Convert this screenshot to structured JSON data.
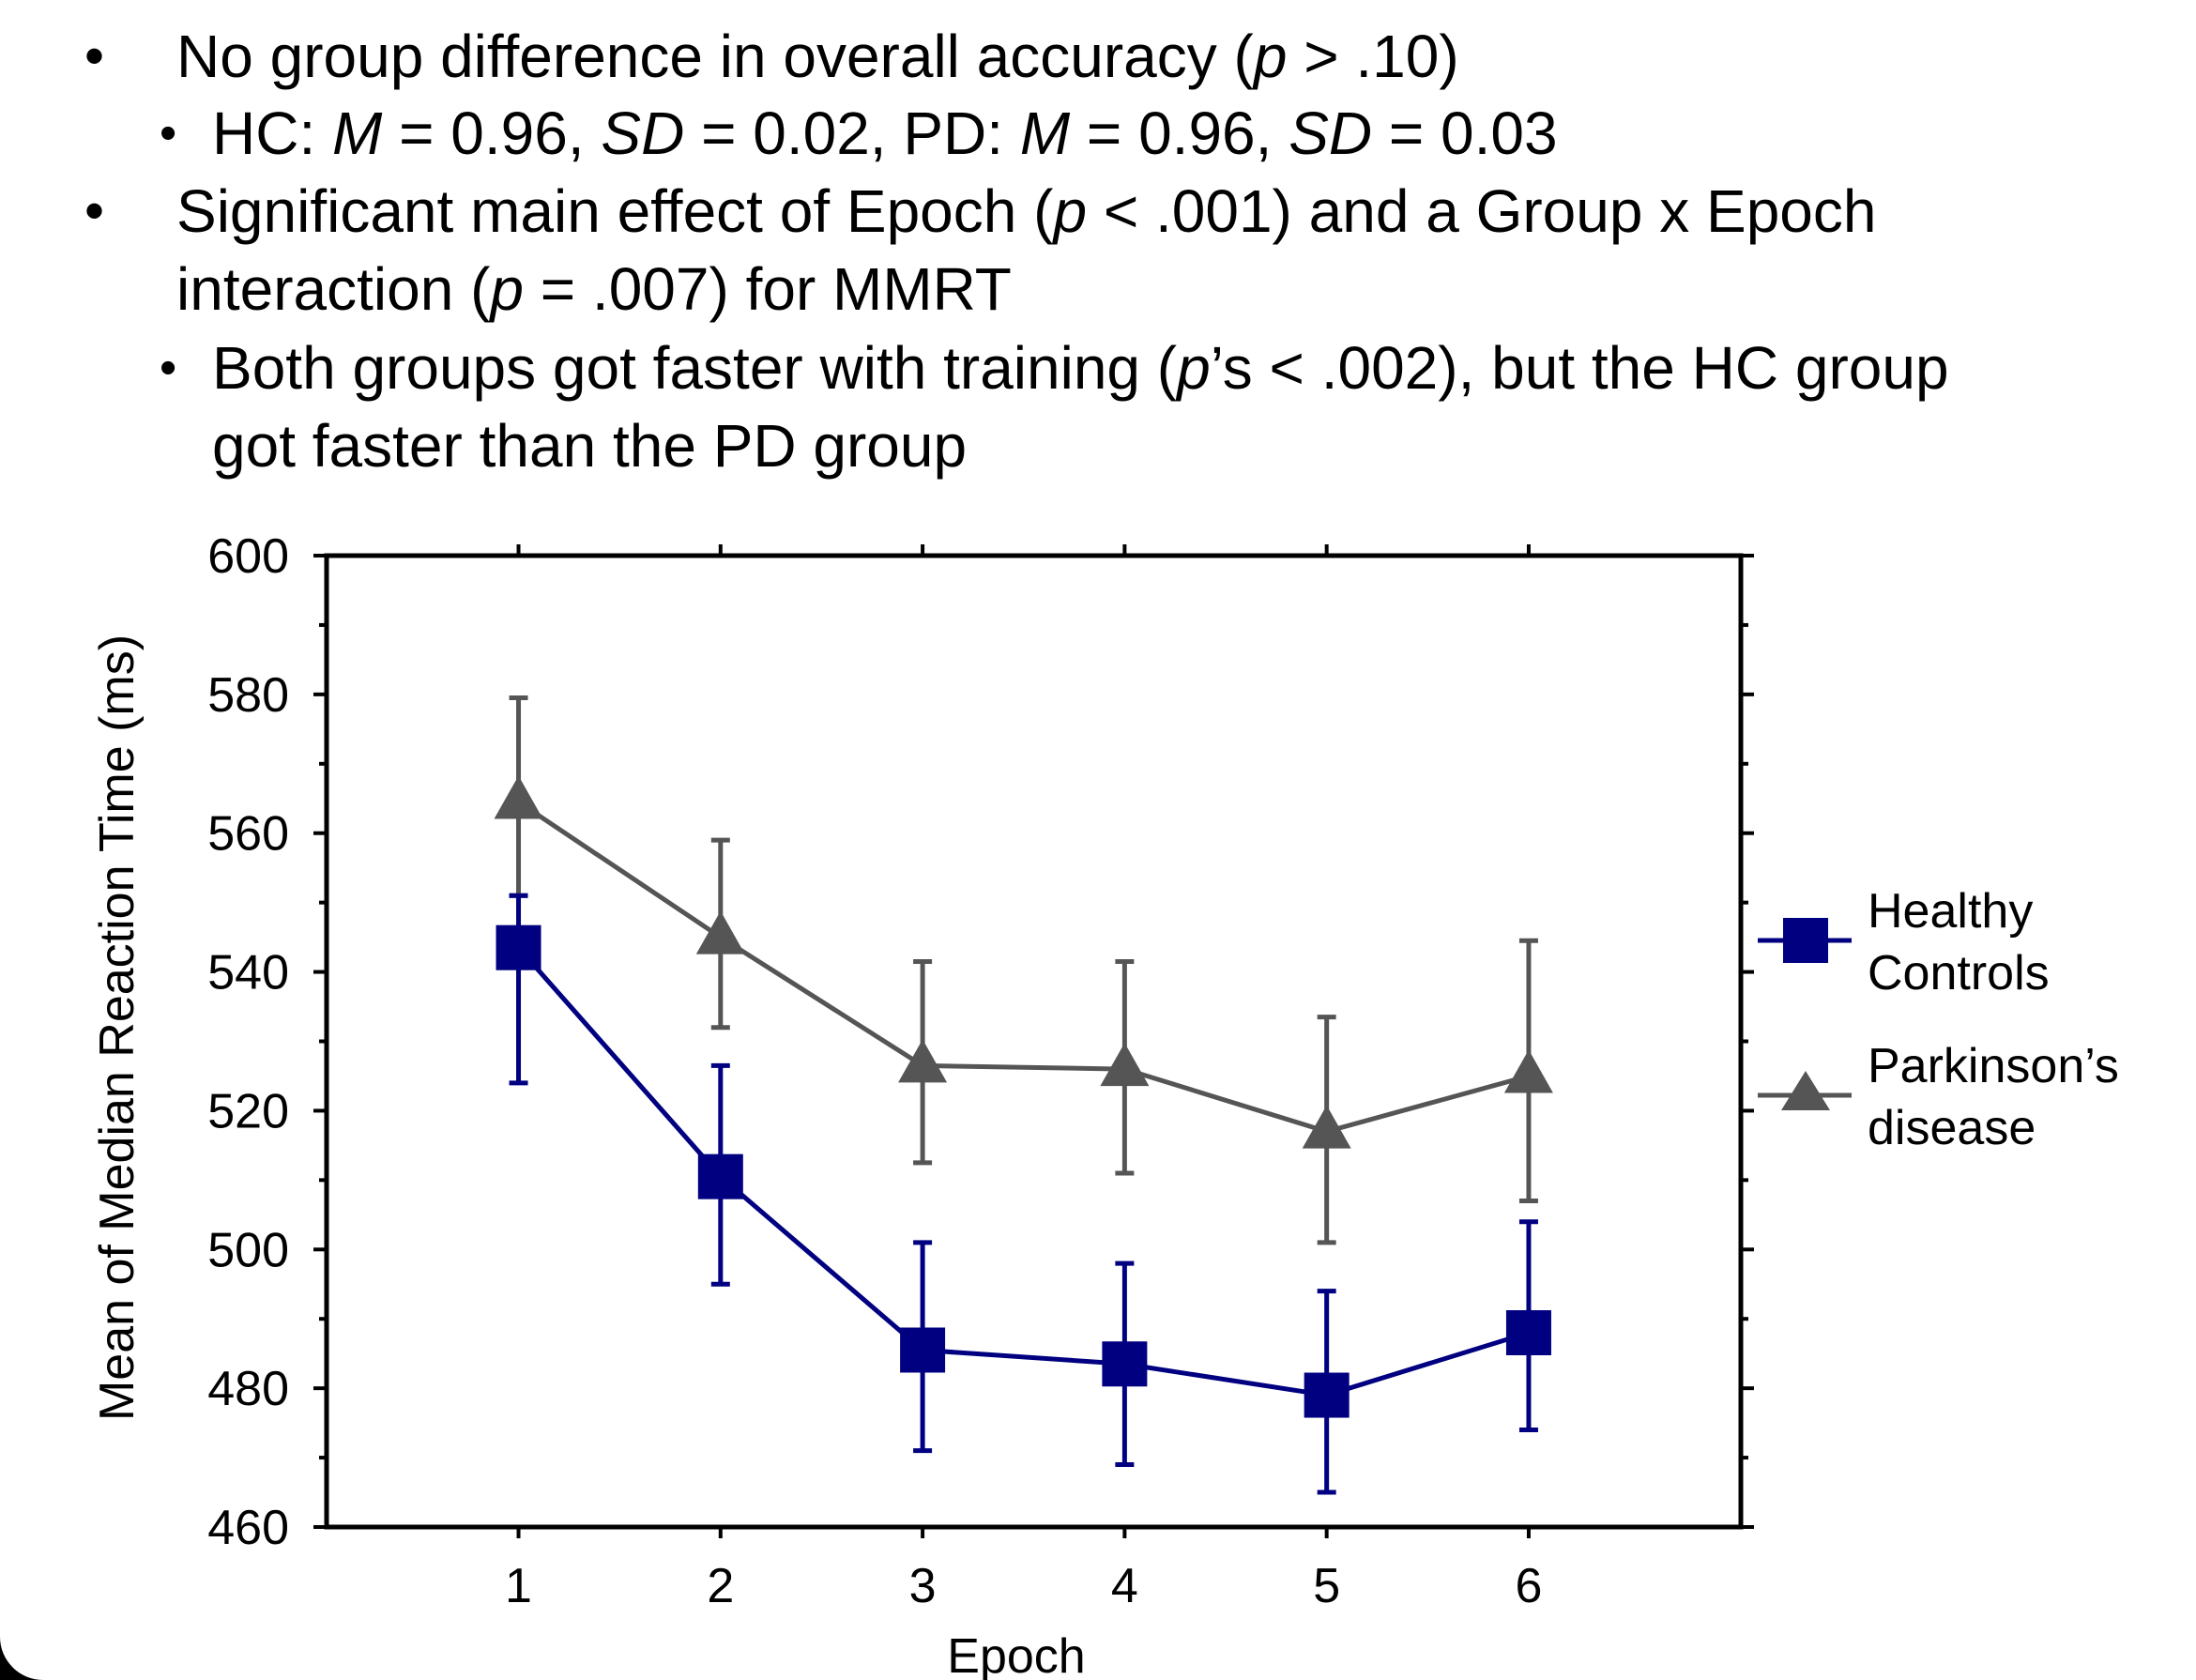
{
  "bullets": {
    "b1": {
      "prefix": "No group difference in overall accuracy (",
      "p": "p",
      "suffix": " > .10)"
    },
    "b1_sub": {
      "hc": "HC: ",
      "m1": "M",
      "v1": " = 0.96, ",
      "sd1": "SD",
      "v2": " = 0.02, PD: ",
      "m2": "M",
      "v3": " = 0.96, ",
      "sd2": "SD",
      "v4": " = 0.03"
    },
    "b2": {
      "line1_prefix": "Significant main effect of Epoch (",
      "p1": "p",
      "line1_suffix": " < .001) and a Group x Epoch",
      "line2_prefix": "interaction (",
      "p2": "p",
      "line2_suffix": " = .007) for MMRT"
    },
    "b2_sub": {
      "line1_prefix": "Both groups got faster with training (",
      "p": "p",
      "line1_suffix": "’s < .002), but the HC group",
      "line2": "got faster than the PD group"
    },
    "bullet_glyph": "•"
  },
  "chart_data": {
    "type": "line",
    "xlabel": "Epoch",
    "ylabel": "Mean of Median Reaction Time (ms)",
    "categories": [
      "1",
      "2",
      "3",
      "4",
      "5",
      "6"
    ],
    "x": [
      1,
      2,
      3,
      4,
      5,
      6
    ],
    "xlim": [
      0.05,
      7.05
    ],
    "ylim": [
      460,
      600
    ],
    "yticks": [
      460,
      480,
      500,
      520,
      540,
      560,
      580,
      600
    ],
    "legend_position": "right",
    "series": [
      {
        "name": "Healthy Controls",
        "name_lines": [
          "Healthy",
          "Controls"
        ],
        "color": "#000080",
        "marker": "square",
        "values": [
          543.5,
          510.5,
          485.5,
          483.5,
          479,
          488
        ],
        "err_low": [
          524,
          495,
          471,
          469,
          465,
          474
        ],
        "err_high": [
          551,
          526.5,
          501,
          498,
          494,
          504
        ]
      },
      {
        "name": "Parkinson’s disease",
        "name_lines": [
          "Parkinson’s",
          "disease"
        ],
        "color": "#555555",
        "marker": "triangle",
        "values": [
          564.5,
          545,
          526.5,
          526,
          517,
          525
        ],
        "err_low": [
          551,
          532,
          512.5,
          511,
          501,
          507
        ],
        "err_high": [
          579.5,
          559,
          541.5,
          541.5,
          533.5,
          544.5
        ]
      }
    ]
  }
}
